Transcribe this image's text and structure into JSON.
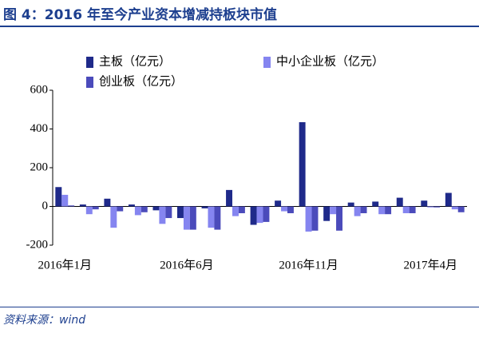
{
  "title": "图 4：2016 年至今产业资本增减持板块市值",
  "source": "资料来源：wind",
  "chart_data": {
    "type": "bar",
    "categories": [
      "2016年1月",
      null,
      null,
      null,
      null,
      "2016年6月",
      null,
      null,
      null,
      null,
      "2016年11月",
      null,
      null,
      null,
      null,
      "2017年4月",
      null
    ],
    "series": [
      {
        "name": "主板（亿元）",
        "color": "#1f2a8a",
        "values": [
          100,
          10,
          40,
          10,
          -20,
          -60,
          -10,
          85,
          -95,
          30,
          435,
          -75,
          20,
          25,
          45,
          30,
          70
        ]
      },
      {
        "name": "中小企业板（亿元）",
        "color": "#8585f0",
        "values": [
          60,
          -40,
          -110,
          -45,
          -90,
          -120,
          -110,
          -50,
          -85,
          -25,
          -130,
          -40,
          -50,
          -40,
          -35,
          -5,
          -15
        ]
      },
      {
        "name": "创业板（亿元）",
        "color": "#4b4bbb",
        "values": [
          5,
          -15,
          -25,
          -30,
          -60,
          -120,
          -120,
          -35,
          -80,
          -35,
          -125,
          -125,
          -35,
          -40,
          -35,
          -5,
          -30
        ]
      }
    ],
    "ylim": [
      -200,
      600
    ],
    "yticks": [
      -200,
      0,
      200,
      400,
      600
    ]
  }
}
